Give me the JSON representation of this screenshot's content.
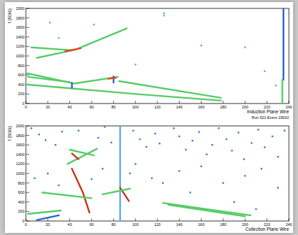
{
  "chart_data": [
    {
      "type": "line",
      "x_label": "Induction Plane Wire",
      "y_label": "t (ticks)",
      "annotation": "Run 621 Event 19032",
      "xlim": [
        0,
        240
      ],
      "ylim": [
        0,
        2000
      ],
      "xticks": [
        0,
        20,
        40,
        60,
        80,
        100,
        120,
        140,
        160,
        180,
        200,
        220,
        240
      ],
      "yticks": [
        0,
        200,
        400,
        600,
        800,
        1000,
        1200,
        1400,
        1600,
        1800,
        2000
      ],
      "series": [
        {
          "type": "line",
          "color": "#55cc66",
          "x": [
            10,
            45,
            92
          ],
          "values": [
            960,
            1130,
            1580
          ]
        },
        {
          "type": "line",
          "color": "#55cc66",
          "x": [
            5,
            42
          ],
          "values": [
            1180,
            1120
          ]
        },
        {
          "type": "line",
          "color": "#e8451e",
          "x": [
            36,
            50
          ],
          "values": [
            1100,
            1160
          ]
        },
        {
          "type": "line",
          "color": "#55cc66",
          "x": [
            0,
            44,
            84
          ],
          "values": [
            640,
            420,
            560
          ]
        },
        {
          "type": "line",
          "color": "#55cc66",
          "x": [
            0,
            100,
            178
          ],
          "values": [
            400,
            200,
            60
          ]
        },
        {
          "type": "line",
          "color": "#55cc66",
          "x": [
            2,
            40
          ],
          "values": [
            560,
            450
          ]
        },
        {
          "type": "line",
          "color": "#55cc66",
          "x": [
            85,
            178
          ],
          "values": [
            470,
            120
          ]
        },
        {
          "type": "line",
          "color": "#2f5fd0",
          "x": [
            42,
            42
          ],
          "values": [
            330,
            430
          ]
        },
        {
          "type": "line",
          "color": "#2f5fd0",
          "x": [
            80,
            80
          ],
          "values": [
            440,
            570
          ]
        },
        {
          "type": "line",
          "color": "#e8451e",
          "x": [
            75,
            82
          ],
          "values": [
            520,
            540
          ]
        },
        {
          "type": "line",
          "color": "#2f5fd0",
          "x": [
            235,
            235
          ],
          "values": [
            500,
            2000
          ]
        },
        {
          "type": "line",
          "color": "#55cc66",
          "x": [
            234,
            234
          ],
          "values": [
            0,
            500
          ]
        },
        {
          "type": "scatter",
          "marker": "square",
          "color": "#5aaee8",
          "x": [
            22,
            62,
            126,
            126,
            160,
            200,
            218,
            228,
            100,
            30
          ],
          "values": [
            1700,
            1660,
            1900,
            1850,
            1220,
            1180,
            680,
            380,
            820,
            1380
          ]
        }
      ]
    },
    {
      "type": "line",
      "x_label": "Collection Plane Wire",
      "y_label": "t (ticks)",
      "xlim": [
        0,
        240
      ],
      "ylim": [
        0,
        2000
      ],
      "xticks": [
        0,
        20,
        40,
        60,
        80,
        100,
        120,
        140,
        160,
        180,
        200,
        220,
        240
      ],
      "yticks": [
        0,
        200,
        400,
        600,
        800,
        1000,
        1200,
        1400,
        1600,
        1800,
        2000
      ],
      "series": [
        {
          "type": "line",
          "color": "#5aaee8",
          "x": [
            86,
            86
          ],
          "values": [
            0,
            2000
          ]
        },
        {
          "type": "line",
          "color": "#55cc66",
          "x": [
            125,
            205
          ],
          "values": [
            380,
            120
          ]
        },
        {
          "type": "line",
          "color": "#55cc66",
          "x": [
            130,
            200
          ],
          "values": [
            340,
            100
          ]
        },
        {
          "type": "line",
          "color": "#c8321a",
          "x": [
            42,
            52,
            58
          ],
          "values": [
            1100,
            600,
            180
          ]
        },
        {
          "type": "line",
          "color": "#55cc66",
          "x": [
            40,
            62
          ],
          "values": [
            1500,
            1380
          ]
        },
        {
          "type": "line",
          "color": "#55cc66",
          "x": [
            38,
            65
          ],
          "values": [
            1200,
            1520
          ]
        },
        {
          "type": "line",
          "color": "#c8321a",
          "x": [
            42,
            48
          ],
          "values": [
            1420,
            1300
          ]
        },
        {
          "type": "line",
          "color": "#55cc66",
          "x": [
            15,
            60
          ],
          "values": [
            600,
            480
          ]
        },
        {
          "type": "line",
          "color": "#c8321a",
          "x": [
            86,
            94
          ],
          "values": [
            700,
            420
          ]
        },
        {
          "type": "line",
          "color": "#55cc66",
          "x": [
            70,
            95
          ],
          "values": [
            560,
            680
          ]
        },
        {
          "type": "line",
          "color": "#55cc66",
          "x": [
            2,
            32
          ],
          "values": [
            150,
            220
          ]
        },
        {
          "type": "line",
          "color": "#2f5fd0",
          "x": [
            10,
            30
          ],
          "values": [
            20,
            120
          ]
        },
        {
          "type": "scatter",
          "marker": "square",
          "color": "#2f7de0",
          "x": [
            5,
            12,
            18,
            27,
            33,
            48,
            66,
            72,
            78,
            98,
            104,
            110,
            118,
            122,
            135,
            140,
            146,
            152,
            158,
            165,
            170,
            176,
            183,
            188,
            194,
            199,
            206,
            212,
            218,
            225,
            230,
            236,
            8,
            20,
            70,
            100,
            115,
            140,
            160,
            180,
            200,
            215,
            230,
            150,
            125,
            95,
            60,
            30,
            190,
            210
          ],
          "values": [
            1950,
            1820,
            1700,
            1600,
            1880,
            1900,
            1750,
            1980,
            1650,
            1900,
            1720,
            1560,
            1840,
            1630,
            1950,
            1780,
            1500,
            1690,
            1870,
            1400,
            1600,
            1950,
            1720,
            1480,
            1860,
            1300,
            1640,
            1920,
            1550,
            1780,
            1350,
            1900,
            900,
            1000,
            1100,
            1200,
            900,
            1050,
            1150,
            800,
            950,
            1100,
            700,
            600,
            800,
            1000,
            880,
            750,
            400,
            250
          ]
        }
      ]
    }
  ]
}
